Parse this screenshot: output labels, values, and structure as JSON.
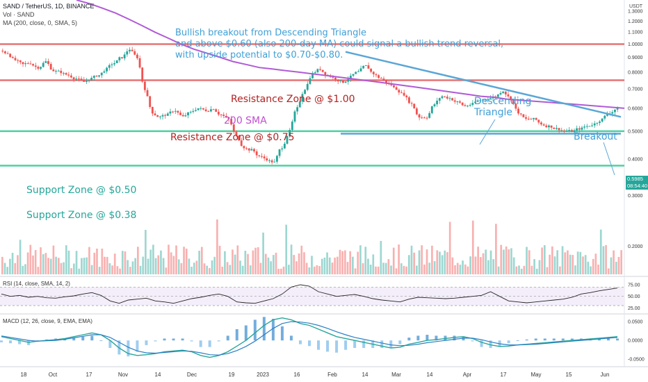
{
  "header": {
    "symbol": "SAND / TetherUS, 1D, BINANCE",
    "volume": "Vol · SAND",
    "ma": "MA (200, close, 0, SMA, 5)",
    "currency": "USDT"
  },
  "annotations": {
    "main_line1": "Bullish breakout from Descending Triangle",
    "main_line2": "and above $0.60 (also 200-day MA) could signal a bullish trend reversal,",
    "main_line3": "with upside potential to $0.70-$0.80.",
    "resistance_100": "Resistance Zone @ $1.00",
    "resistance_075": "Resistance Zone @ $0.75",
    "support_050": "Support Zone @ $0.50",
    "support_038": "Support Zone @ $0.38",
    "sma": "200 SMA",
    "triangle_line1": "Descending",
    "triangle_line2": "Triangle",
    "breakout": "Breakout"
  },
  "indicators": {
    "rsi_label": "RSI (14, close, SMA, 14, 2)",
    "macd_label": "MACD (12, 26, close, 9, EMA, EMA)"
  },
  "price_tags": {
    "last_price": "0.5985",
    "countdown": "08:54:40"
  },
  "colors": {
    "up": "#26a69a",
    "down": "#ef5350",
    "sma": "#b05ad6",
    "resistance": "#e57373",
    "support": "#4dd0a0",
    "trendline": "#5aa6d6"
  },
  "chart_data": [
    {
      "type": "candlestick",
      "title": "SAND / TetherUS, 1D, BINANCE",
      "y_ticks": [
        "1.3000",
        "1.2000",
        "1.1000",
        "1.0000",
        "0.9000",
        "0.8000",
        "0.7000",
        "0.6000",
        "0.5000",
        "0.4000",
        "0.3000",
        "0.2000"
      ],
      "x_ticks": [
        "18",
        "Oct",
        "17",
        "Nov",
        "14",
        "Dec",
        "19",
        "2023",
        "16",
        "Feb",
        "14",
        "Mar",
        "14",
        "Apr",
        "17",
        "May",
        "15",
        "Jun"
      ],
      "y_axis_scale": "log",
      "ylim": [
        0.16,
        1.42
      ],
      "last_price": 0.5985,
      "close_series": [
        0.93,
        0.88,
        0.85,
        0.86,
        0.83,
        0.87,
        0.81,
        0.8,
        0.78,
        0.76,
        0.74,
        0.76,
        0.78,
        0.82,
        0.86,
        0.9,
        0.96,
        0.9,
        0.7,
        0.58,
        0.56,
        0.57,
        0.59,
        0.56,
        0.58,
        0.6,
        0.59,
        0.6,
        0.57,
        0.55,
        0.48,
        0.44,
        0.43,
        0.41,
        0.4,
        0.39,
        0.44,
        0.5,
        0.6,
        0.7,
        0.79,
        0.82,
        0.78,
        0.76,
        0.74,
        0.77,
        0.8,
        0.84,
        0.79,
        0.76,
        0.73,
        0.7,
        0.67,
        0.62,
        0.56,
        0.56,
        0.62,
        0.66,
        0.65,
        0.63,
        0.61,
        0.62,
        0.64,
        0.65,
        0.66,
        0.69,
        0.65,
        0.58,
        0.55,
        0.55,
        0.53,
        0.52,
        0.51,
        0.5,
        0.5,
        0.51,
        0.52,
        0.53,
        0.55,
        0.58,
        0.6
      ],
      "overlays": {
        "sma200": [
          1.42,
          1.38,
          1.33,
          1.28,
          1.22,
          1.16,
          1.1,
          1.05,
          1.0,
          0.96,
          0.93,
          0.9,
          0.87,
          0.85,
          0.83,
          0.82,
          0.81,
          0.8,
          0.79,
          0.78,
          0.77,
          0.76,
          0.75,
          0.74,
          0.73,
          0.72,
          0.71,
          0.7,
          0.69,
          0.68,
          0.67,
          0.66,
          0.655,
          0.645,
          0.64,
          0.635,
          0.63,
          0.625,
          0.62,
          0.615,
          0.61,
          0.605,
          0.6
        ],
        "resistance_zones": [
          1.0,
          0.75
        ],
        "support_zones": [
          0.5,
          0.38
        ],
        "descending_triangle": {
          "upper_start": 0.94,
          "upper_end": 0.56,
          "base": 0.49
        }
      }
    },
    {
      "type": "bar",
      "title": "Vol · SAND"
    },
    {
      "type": "line",
      "title": "RSI (14, close, SMA, 14, 2)",
      "y_ticks": [
        "75.00",
        "50.00",
        "25.00"
      ],
      "ylim": [
        15,
        90
      ],
      "bands": [
        70,
        50,
        30
      ],
      "values": [
        55,
        50,
        52,
        48,
        50,
        47,
        46,
        49,
        51,
        55,
        58,
        52,
        40,
        35,
        42,
        44,
        46,
        40,
        38,
        35,
        40,
        45,
        48,
        52,
        55,
        50,
        38,
        36,
        35,
        40,
        45,
        55,
        70,
        75,
        72,
        60,
        55,
        50,
        52,
        54,
        50,
        45,
        42,
        40,
        38,
        44,
        48,
        47,
        46,
        45,
        46,
        48,
        50,
        52,
        60,
        50,
        40,
        38,
        36,
        38,
        40,
        42,
        44,
        48,
        55,
        58,
        62,
        65,
        68
      ]
    },
    {
      "type": "line",
      "title": "MACD (12, 26, close, 9, EMA, EMA)",
      "y_ticks": [
        "0.0500",
        "0.0000",
        "-0.0500"
      ],
      "ylim": [
        -0.07,
        0.065
      ],
      "macd": [
        0.01,
        0.005,
        0.0,
        -0.005,
        -0.002,
        0.0,
        0.002,
        0.005,
        0.01,
        0.015,
        0.02,
        0.015,
        0.0,
        -0.02,
        -0.035,
        -0.04,
        -0.038,
        -0.035,
        -0.03,
        -0.028,
        -0.026,
        -0.03,
        -0.04,
        -0.045,
        -0.04,
        -0.03,
        -0.015,
        0.0,
        0.02,
        0.04,
        0.055,
        0.06,
        0.055,
        0.045,
        0.04,
        0.03,
        0.02,
        0.01,
        0.005,
        0.0,
        -0.005,
        -0.01,
        -0.015,
        -0.02,
        -0.018,
        -0.01,
        -0.005,
        0.0,
        0.002,
        0.005,
        0.008,
        0.01,
        0.005,
        -0.005,
        -0.012,
        -0.016,
        -0.015,
        -0.012,
        -0.01,
        -0.008,
        -0.006,
        -0.004,
        -0.002,
        0.0,
        0.002,
        0.004,
        0.006,
        0.008,
        0.01
      ],
      "signal": [
        0.012,
        0.008,
        0.004,
        0.0,
        -0.002,
        -0.001,
        0.0,
        0.003,
        0.007,
        0.011,
        0.015,
        0.015,
        0.008,
        -0.005,
        -0.018,
        -0.028,
        -0.033,
        -0.034,
        -0.032,
        -0.03,
        -0.028,
        -0.029,
        -0.033,
        -0.038,
        -0.039,
        -0.035,
        -0.027,
        -0.016,
        -0.002,
        0.015,
        0.032,
        0.045,
        0.05,
        0.049,
        0.046,
        0.04,
        0.032,
        0.023,
        0.015,
        0.008,
        0.003,
        -0.002,
        -0.007,
        -0.012,
        -0.014,
        -0.013,
        -0.01,
        -0.006,
        -0.003,
        0.0,
        0.003,
        0.006,
        0.006,
        0.002,
        -0.004,
        -0.009,
        -0.012,
        -0.012,
        -0.011,
        -0.01,
        -0.008,
        -0.006,
        -0.004,
        -0.002,
        0.0,
        0.002,
        0.004,
        0.006,
        0.008
      ]
    }
  ]
}
